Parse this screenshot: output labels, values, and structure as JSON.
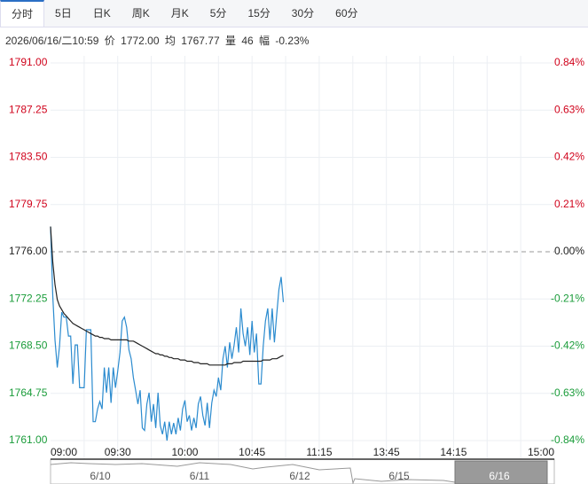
{
  "tabs": [
    "分时",
    "5日",
    "日K",
    "周K",
    "月K",
    "5分",
    "15分",
    "30分",
    "60分"
  ],
  "info": {
    "time": "2026/06/16/二10:59",
    "price_label": "价",
    "price": "1772.00",
    "avg_label": "均",
    "avg": "1767.77",
    "vol_label": "量",
    "vol": "46",
    "amp_label": "幅",
    "amp": "-0.23%"
  },
  "navigator": {
    "dates": [
      "6/10",
      "6/11",
      "6/12",
      "6/15",
      "6/16"
    ]
  },
  "chart_data": {
    "type": "line",
    "x": [
      "09:00",
      "09:01",
      "09:02",
      "09:03",
      "09:04",
      "09:05",
      "09:06",
      "09:07",
      "09:08",
      "09:09",
      "09:10",
      "09:11",
      "09:12",
      "09:13",
      "09:14",
      "09:15",
      "09:16",
      "09:17",
      "09:18",
      "09:19",
      "09:20",
      "09:21",
      "09:22",
      "09:23",
      "09:24",
      "09:25",
      "09:26",
      "09:27",
      "09:28",
      "09:29",
      "09:30",
      "09:31",
      "09:32",
      "09:33",
      "09:34",
      "09:35",
      "09:36",
      "09:37",
      "09:38",
      "09:39",
      "09:40",
      "09:41",
      "09:42",
      "09:43",
      "09:44",
      "09:45",
      "09:46",
      "09:47",
      "09:48",
      "09:49",
      "09:50",
      "09:51",
      "09:52",
      "09:53",
      "09:54",
      "09:55",
      "09:56",
      "09:57",
      "09:58",
      "09:59",
      "10:00",
      "10:01",
      "10:02",
      "10:03",
      "10:04",
      "10:05",
      "10:06",
      "10:07",
      "10:08",
      "10:09",
      "10:10",
      "10:11",
      "10:12",
      "10:13",
      "10:14",
      "10:30",
      "10:31",
      "10:32",
      "10:33",
      "10:34",
      "10:35",
      "10:36",
      "10:37",
      "10:38",
      "10:39",
      "10:40",
      "10:41",
      "10:42",
      "10:43",
      "10:44",
      "10:45",
      "10:46",
      "10:47",
      "10:48",
      "10:49",
      "10:50",
      "10:51",
      "10:52",
      "10:53",
      "10:54",
      "10:55",
      "10:56",
      "10:57",
      "10:58",
      "10:59"
    ],
    "series": [
      {
        "color": "#2b8bcf",
        "values": [
          1778.0,
          1772.5,
          1769.0,
          1766.8,
          1768.5,
          1771.2,
          1770.8,
          1770.8,
          1769.3,
          1769.3,
          1765.5,
          1768.6,
          1768.6,
          1765.2,
          1765.2,
          1765.2,
          1769.8,
          1769.8,
          1769.8,
          1762.5,
          1762.5,
          1763.5,
          1764.1,
          1763.5,
          1766.8,
          1764.8,
          1766.8,
          1764.0,
          1766.8,
          1765.2,
          1766.5,
          1768.0,
          1770.5,
          1770.8,
          1770.0,
          1768.2,
          1767.5,
          1766.0,
          1765.0,
          1763.9,
          1765.0,
          1762.0,
          1761.8,
          1763.9,
          1764.8,
          1762.5,
          1763.9,
          1762.0,
          1764.8,
          1762.2,
          1761.5,
          1762.5,
          1761.0,
          1762.5,
          1761.5,
          1762.4,
          1761.5,
          1762.8,
          1761.8,
          1763.5,
          1764.2,
          1762.5,
          1763.0,
          1761.8,
          1762.8,
          1762.0,
          1763.9,
          1764.5,
          1763.0,
          1762.2,
          1764.0,
          1762.0,
          1764.0,
          1765.0,
          1764.5,
          1766.0,
          1765.0,
          1767.5,
          1768.5,
          1766.8,
          1768.8,
          1767.5,
          1768.6,
          1770.0,
          1768.0,
          1771.5,
          1769.5,
          1768.5,
          1770.0,
          1767.8,
          1770.5,
          1768.0,
          1769.5,
          1765.5,
          1765.5,
          1768.5,
          1770.5,
          1771.5,
          1769.0,
          1771.5,
          1768.8,
          1771.0,
          1773.0,
          1774.0,
          1772.0
        ]
      },
      {
        "color": "#222222",
        "values": [
          1778.0,
          1775.2,
          1773.4,
          1772.2,
          1771.7,
          1771.4,
          1771.1,
          1770.9,
          1770.7,
          1770.5,
          1770.3,
          1770.2,
          1770.1,
          1770.0,
          1769.9,
          1769.8,
          1769.7,
          1769.6,
          1769.5,
          1769.4,
          1769.3,
          1769.3,
          1769.2,
          1769.2,
          1769.1,
          1769.1,
          1769.1,
          1769.0,
          1769.0,
          1769.0,
          1769.0,
          1769.0,
          1769.0,
          1769.0,
          1769.0,
          1768.9,
          1768.9,
          1768.9,
          1768.8,
          1768.7,
          1768.6,
          1768.5,
          1768.4,
          1768.3,
          1768.2,
          1768.1,
          1768.0,
          1767.9,
          1767.9,
          1767.8,
          1767.8,
          1767.7,
          1767.7,
          1767.6,
          1767.6,
          1767.5,
          1767.5,
          1767.5,
          1767.4,
          1767.4,
          1767.4,
          1767.3,
          1767.3,
          1767.3,
          1767.2,
          1767.2,
          1767.2,
          1767.1,
          1767.1,
          1767.1,
          1767.1,
          1767.0,
          1767.0,
          1767.0,
          1767.0,
          1767.0,
          1767.0,
          1767.0,
          1767.0,
          1767.1,
          1767.1,
          1767.1,
          1767.2,
          1767.2,
          1767.2,
          1767.2,
          1767.3,
          1767.3,
          1767.3,
          1767.3,
          1767.3,
          1767.3,
          1767.3,
          1767.3,
          1767.3,
          1767.4,
          1767.4,
          1767.4,
          1767.4,
          1767.5,
          1767.5,
          1767.5,
          1767.6,
          1767.7,
          1767.77
        ]
      }
    ],
    "xticks": [
      "09:00",
      "09:30",
      "10:00",
      "10:45",
      "11:15",
      "13:45",
      "14:15",
      "15:00"
    ],
    "ylim": [
      1761,
      1791
    ],
    "yticks": [
      {
        "value": 1791,
        "label": "1791.00"
      },
      {
        "value": 1787.25,
        "label": "1787.25"
      },
      {
        "value": 1783.5,
        "label": "1783.50"
      },
      {
        "value": 1779.75,
        "label": "1779.75"
      },
      {
        "value": 1776,
        "label": "1776.00"
      },
      {
        "value": 1772.25,
        "label": "1772.25"
      },
      {
        "value": 1768.5,
        "label": "1768.50"
      },
      {
        "value": 1764.75,
        "label": "1764.75"
      },
      {
        "value": 1761,
        "label": "1761.00"
      }
    ],
    "y2lim": [
      -0.84,
      0.84
    ],
    "y2ticks": [
      {
        "value": 0.84,
        "label": "0.84%"
      },
      {
        "value": 0.63,
        "label": "0.63%"
      },
      {
        "value": 0.42,
        "label": "0.42%"
      },
      {
        "value": 0.21,
        "label": "0.21%"
      },
      {
        "value": 0,
        "label": "0.00%"
      },
      {
        "value": -0.21,
        "label": "-0.21%"
      },
      {
        "value": -0.42,
        "label": "-0.42%"
      },
      {
        "value": -0.63,
        "label": "-0.63%"
      },
      {
        "value": -0.84,
        "label": "-0.84%"
      }
    ],
    "grid": true
  }
}
